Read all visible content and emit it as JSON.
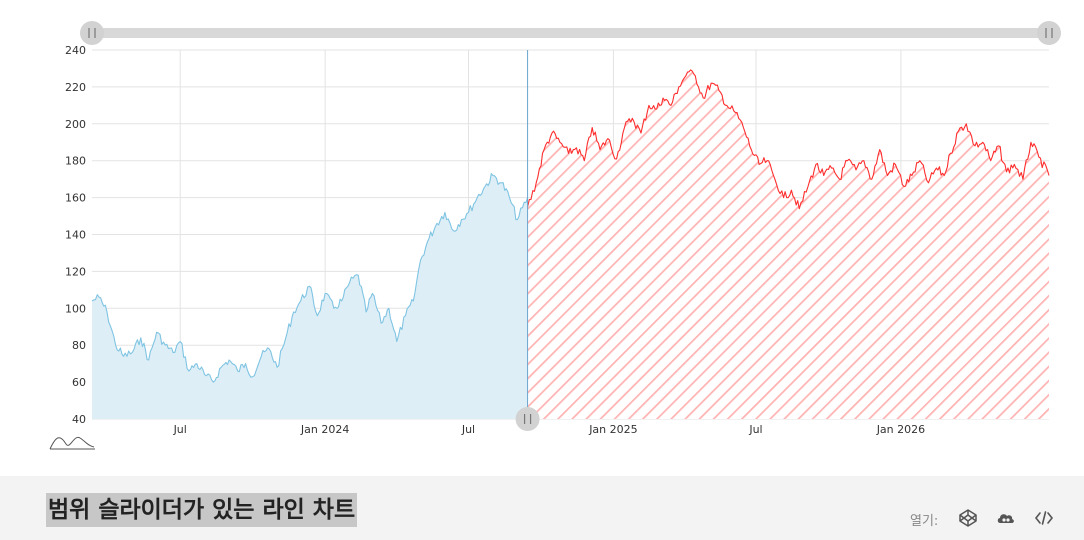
{
  "chart_data": {
    "type": "area",
    "title": "",
    "xlabel": "",
    "ylabel": "",
    "ylim": [
      40,
      240
    ],
    "xlim": [
      "2023-03-11",
      "2026-07-08"
    ],
    "yticks": [
      "40",
      "60",
      "80",
      "100",
      "120",
      "140",
      "160",
      "180",
      "200",
      "220",
      "240"
    ],
    "xticks": [
      {
        "date": "2023-07-01",
        "label": "Jul"
      },
      {
        "date": "2024-01-01",
        "label": "Jan 2024"
      },
      {
        "date": "2024-07-01",
        "label": "Jul"
      },
      {
        "date": "2025-01-01",
        "label": "Jan 2025"
      },
      {
        "date": "2025-07-01",
        "label": "Jul"
      },
      {
        "date": "2026-01-01",
        "label": "Jan 2026"
      }
    ],
    "grid": true,
    "range_split_date": "2024-09-14",
    "series": [
      {
        "color": "#7fc4e2",
        "fill": "#deeef7",
        "x": [
          "2023-03-11",
          "2023-03-20",
          "2023-03-30",
          "2023-04-10",
          "2023-04-20",
          "2023-05-01",
          "2023-05-12",
          "2023-05-22",
          "2023-06-01",
          "2023-06-12",
          "2023-06-22",
          "2023-07-01",
          "2023-07-12",
          "2023-07-22",
          "2023-08-01",
          "2023-08-12",
          "2023-08-22",
          "2023-09-01",
          "2023-09-12",
          "2023-09-22",
          "2023-10-01",
          "2023-10-12",
          "2023-10-22",
          "2023-11-01",
          "2023-11-12",
          "2023-11-22",
          "2023-12-01",
          "2023-12-12",
          "2023-12-22",
          "2024-01-01",
          "2024-01-12",
          "2024-01-22",
          "2024-02-01",
          "2024-02-12",
          "2024-02-22",
          "2024-03-01",
          "2024-03-12",
          "2024-03-22",
          "2024-04-01",
          "2024-04-12",
          "2024-04-22",
          "2024-05-01",
          "2024-05-12",
          "2024-05-22",
          "2024-06-01",
          "2024-06-12",
          "2024-06-22",
          "2024-07-01",
          "2024-07-12",
          "2024-07-22",
          "2024-08-01",
          "2024-08-12",
          "2024-08-22",
          "2024-09-01",
          "2024-09-14"
        ],
        "y": [
          104,
          106,
          98,
          80,
          74,
          76,
          84,
          72,
          87,
          80,
          76,
          82,
          66,
          70,
          64,
          60,
          68,
          72,
          66,
          70,
          63,
          74,
          78,
          68,
          84,
          98,
          104,
          112,
          96,
          108,
          100,
          104,
          114,
          118,
          98,
          108,
          92,
          100,
          82,
          96,
          104,
          126,
          138,
          146,
          152,
          142,
          148,
          152,
          160,
          166,
          172,
          168,
          160,
          148,
          160
        ]
      },
      {
        "color": "#ff2d2d",
        "fill": "hatch",
        "x": [
          "2024-09-14",
          "2024-09-25",
          "2024-10-05",
          "2024-10-15",
          "2024-10-25",
          "2024-11-05",
          "2024-11-15",
          "2024-11-25",
          "2024-12-05",
          "2024-12-15",
          "2024-12-25",
          "2025-01-05",
          "2025-01-15",
          "2025-01-25",
          "2025-02-05",
          "2025-02-15",
          "2025-02-25",
          "2025-03-05",
          "2025-03-15",
          "2025-03-25",
          "2025-04-05",
          "2025-04-15",
          "2025-04-25",
          "2025-05-05",
          "2025-05-15",
          "2025-05-25",
          "2025-06-05",
          "2025-06-15",
          "2025-06-25",
          "2025-07-05",
          "2025-07-15",
          "2025-07-25",
          "2025-08-05",
          "2025-08-15",
          "2025-08-25",
          "2025-09-05",
          "2025-09-15",
          "2025-09-25",
          "2025-10-05",
          "2025-10-15",
          "2025-10-25",
          "2025-11-05",
          "2025-11-15",
          "2025-11-25",
          "2025-12-05",
          "2025-12-15",
          "2025-12-25",
          "2026-01-05",
          "2026-01-15",
          "2026-01-25",
          "2026-02-05",
          "2026-02-15",
          "2026-02-25",
          "2026-03-05",
          "2026-03-15",
          "2026-03-25",
          "2026-04-05",
          "2026-04-15",
          "2026-04-25",
          "2026-05-05",
          "2026-05-15",
          "2026-05-25",
          "2026-06-05",
          "2026-06-15",
          "2026-06-25",
          "2026-07-08"
        ],
        "y": [
          155,
          168,
          186,
          195,
          190,
          184,
          187,
          180,
          198,
          186,
          192,
          181,
          198,
          203,
          195,
          210,
          208,
          214,
          210,
          220,
          228,
          226,
          214,
          222,
          218,
          210,
          206,
          198,
          186,
          178,
          180,
          170,
          160,
          164,
          154,
          166,
          178,
          172,
          176,
          170,
          180,
          175,
          180,
          170,
          186,
          172,
          178,
          166,
          172,
          180,
          168,
          176,
          172,
          184,
          196,
          200,
          188,
          190,
          180,
          188,
          174,
          178,
          170,
          190,
          182,
          172
        ]
      }
    ]
  },
  "footer": {
    "title": "범위 슬라이더가 있는 라인 차트",
    "open_label": "열기:",
    "icons": [
      "codepen-icon",
      "jsfiddle-icon",
      "code-icon"
    ]
  },
  "colors": {
    "past_line": "#7fc4e2",
    "past_fill": "#deeef7",
    "future_line": "#ff2d2d",
    "future_hatch": "#ffb3b3",
    "slider_track": "#d8d8d8",
    "slider_handle": "#d2d2d2"
  }
}
